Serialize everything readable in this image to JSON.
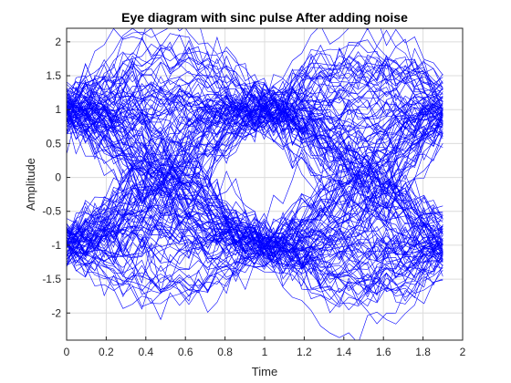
{
  "chart_data": {
    "type": "line",
    "title": "Eye diagram with sinc pulse After adding noise",
    "xlabel": "Time",
    "ylabel": "Amplitude",
    "xlim": [
      0,
      2
    ],
    "ylim": [
      -2.4,
      2.2
    ],
    "xticks": [
      "0",
      "0.2",
      "0.4",
      "0.6",
      "0.8",
      "1",
      "1.2",
      "1.4",
      "1.6",
      "1.8",
      "2"
    ],
    "yticks": [
      "-2",
      "-1.5",
      "-1",
      "-0.5",
      "0",
      "0.5",
      "1",
      "1.5",
      "2"
    ],
    "grid": true,
    "trace_color": "#0000ff",
    "trace_count": 160,
    "trace_x_range": [
      0,
      1.9
    ],
    "symbol_period": 1,
    "symbol_levels": [
      -1,
      1
    ],
    "noise_std_estimate": 0.25
  }
}
